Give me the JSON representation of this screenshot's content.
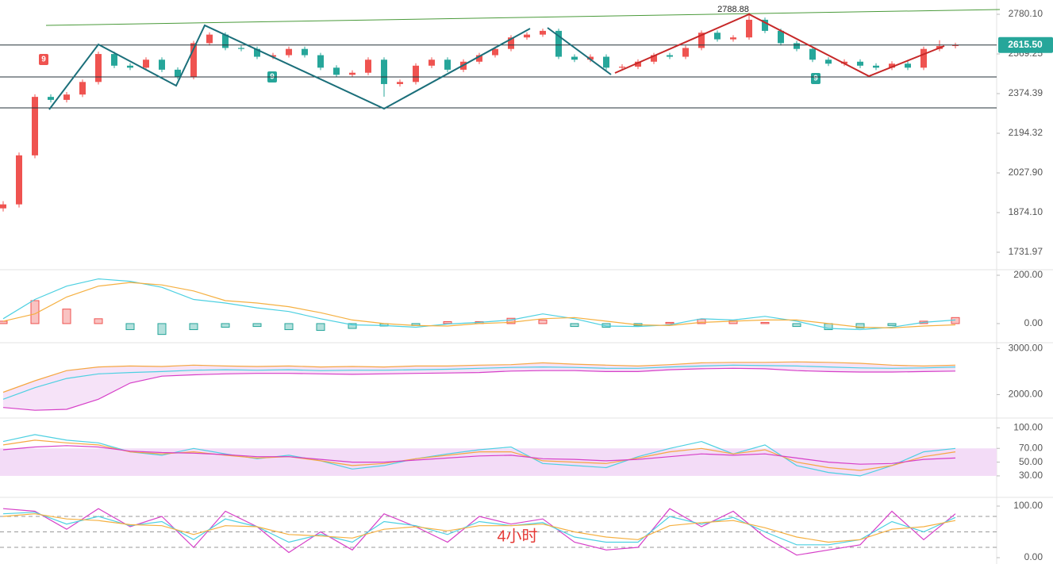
{
  "watermark": "4小时",
  "chart_data": [
    {
      "type": "candlestick",
      "log_scale": true,
      "up_color": "#ef5350",
      "down_color": "#26a69a",
      "ylim": [
        1672.9,
        2860.2
      ],
      "yticks": [
        {
          "value": 2780.1,
          "label": "2780.10"
        },
        2569.25,
        2374.39,
        2194.32,
        {
          "value": 2027.9,
          "label": "2027.90"
        },
        {
          "value": 1874.1,
          "label": "1874.10"
        },
        1731.97
      ],
      "open": [
        1890,
        1905,
        2100,
        2359,
        2345,
        2370,
        2430,
        2569,
        2510,
        2500,
        2540,
        2490,
        2455,
        2625,
        2670,
        2600,
        2595,
        2555,
        2563,
        2595,
        2563,
        2500,
        2465,
        2475,
        2540,
        2420,
        2430,
        2510,
        2540,
        2490,
        2530,
        2563,
        2595,
        2655,
        2670,
        2690,
        2555,
        2540,
        2555,
        2500,
        2505,
        2530,
        2563,
        2555,
        2600,
        2680,
        2645,
        2655,
        2750,
        2690,
        2625,
        2595,
        2540,
        2520,
        2530,
        2510,
        2500,
        2520,
        2500,
        2595,
        2610
      ],
      "high": [
        1917,
        2112,
        2371,
        2371,
        2382,
        2442,
        2581,
        2581,
        2522,
        2552,
        2552,
        2502,
        2637,
        2682,
        2682,
        2612,
        2607,
        2575,
        2607,
        2607,
        2575,
        2512,
        2487,
        2552,
        2552,
        2442,
        2522,
        2552,
        2552,
        2542,
        2575,
        2607,
        2667,
        2682,
        2702,
        2702,
        2567,
        2567,
        2567,
        2517,
        2542,
        2575,
        2575,
        2612,
        2692,
        2692,
        2667,
        2788.88,
        2762,
        2702,
        2637,
        2607,
        2552,
        2542,
        2542,
        2522,
        2532,
        2532,
        2607,
        2640,
        2627
      ],
      "low": [
        1878,
        1893,
        2088,
        2333,
        2333,
        2358,
        2418,
        2498,
        2488,
        2488,
        2478,
        2443,
        2443,
        2613,
        2588,
        2583,
        2543,
        2543,
        2551,
        2551,
        2488,
        2453,
        2453,
        2463,
        2360,
        2408,
        2418,
        2498,
        2478,
        2478,
        2518,
        2551,
        2583,
        2643,
        2658,
        2543,
        2528,
        2528,
        2488,
        2488,
        2493,
        2518,
        2543,
        2543,
        2588,
        2633,
        2633,
        2643,
        2678,
        2613,
        2583,
        2528,
        2508,
        2508,
        2498,
        2488,
        2488,
        2488,
        2488,
        2583,
        2598
      ],
      "close": [
        1905,
        2100,
        2359,
        2345,
        2370,
        2430,
        2569,
        2510,
        2500,
        2540,
        2490,
        2455,
        2625,
        2670,
        2600,
        2595,
        2555,
        2563,
        2595,
        2563,
        2500,
        2465,
        2475,
        2540,
        2420,
        2430,
        2510,
        2540,
        2490,
        2530,
        2563,
        2595,
        2655,
        2670,
        2690,
        2555,
        2540,
        2555,
        2500,
        2505,
        2530,
        2563,
        2555,
        2600,
        2680,
        2645,
        2655,
        2750,
        2690,
        2625,
        2595,
        2540,
        2520,
        2530,
        2510,
        2500,
        2520,
        2500,
        2595,
        2610,
        2615.5
      ],
      "price_tag": {
        "value": 2615.5,
        "label": "2615.50"
      },
      "markers": [
        "9",
        "9",
        "9"
      ]
    },
    {
      "type": "macd",
      "ylim": [
        -79,
        223
      ],
      "yticks": [
        {
          "value": 200,
          "label": "200.00"
        },
        {
          "value": 0,
          "label": "0.00"
        }
      ],
      "up_color": "#ef5350",
      "down_color": "#26a69a",
      "histogram": [
        10,
        95,
        60,
        20,
        -25,
        -45,
        -25,
        -15,
        -12,
        -25,
        -28,
        -20,
        -10,
        -8,
        8,
        8,
        22,
        15,
        -12,
        -15,
        -8,
        5,
        18,
        12,
        5,
        -12,
        -25,
        -18,
        -8,
        10,
        25
      ],
      "series": [
        {
          "color": "#4dd0e1",
          "values": [
            20,
            100,
            155,
            185,
            175,
            150,
            100,
            85,
            65,
            50,
            20,
            -5,
            -8,
            -15,
            -2,
            5,
            15,
            40,
            20,
            -10,
            -12,
            -5,
            20,
            15,
            30,
            10,
            -20,
            -25,
            -15,
            5,
            15
          ]
        },
        {
          "color": "#f5b041",
          "values": [
            10,
            40,
            110,
            155,
            170,
            160,
            135,
            95,
            85,
            70,
            45,
            15,
            0,
            -8,
            -10,
            0,
            5,
            20,
            25,
            10,
            -5,
            -8,
            5,
            10,
            15,
            15,
            0,
            -15,
            -18,
            -10,
            -5
          ]
        }
      ]
    },
    {
      "type": "bands",
      "ylim": [
        1491,
        3127
      ],
      "fill": "#f6e3f8",
      "yticks": [
        {
          "value": 3000,
          "label": "3000.00"
        },
        {
          "value": 2000,
          "label": "2000.00"
        }
      ],
      "series": [
        {
          "color": "#f5a742",
          "values": [
            2050,
            2300,
            2520,
            2600,
            2620,
            2610,
            2640,
            2620,
            2610,
            2620,
            2600,
            2610,
            2600,
            2620,
            2620,
            2640,
            2650,
            2690,
            2660,
            2640,
            2620,
            2650,
            2690,
            2700,
            2700,
            2710,
            2700,
            2680,
            2640,
            2620,
            2640
          ]
        },
        {
          "color": "#4dd0e1",
          "values": [
            1900,
            2150,
            2350,
            2450,
            2480,
            2500,
            2530,
            2540,
            2530,
            2540,
            2520,
            2530,
            2530,
            2540,
            2550,
            2570,
            2590,
            2600,
            2590,
            2570,
            2570,
            2600,
            2620,
            2640,
            2630,
            2620,
            2600,
            2580,
            2570,
            2580,
            2600
          ]
        },
        {
          "color": "#d63fc8",
          "values": [
            1720,
            1660,
            1680,
            1900,
            2250,
            2400,
            2430,
            2450,
            2460,
            2460,
            2450,
            2440,
            2450,
            2460,
            2470,
            2480,
            2510,
            2520,
            2520,
            2500,
            2500,
            2540,
            2560,
            2570,
            2560,
            2520,
            2500,
            2490,
            2490,
            2500,
            2510
          ]
        }
      ]
    },
    {
      "type": "line",
      "ylim": [
        2.2,
        108.4
      ],
      "band": [
        30,
        70
      ],
      "band_color": "#f3dcf7",
      "yticks": [
        {
          "value": 100,
          "label": "100.00"
        },
        {
          "value": 70,
          "label": "70.00"
        },
        {
          "value": 50,
          "label": "50.00"
        },
        {
          "value": 30,
          "label": "30.00"
        }
      ],
      "series": [
        {
          "color": "#4dd0e1",
          "values": [
            80,
            90,
            82,
            78,
            65,
            60,
            70,
            62,
            55,
            60,
            52,
            40,
            45,
            55,
            62,
            68,
            72,
            48,
            45,
            42,
            58,
            70,
            80,
            62,
            75,
            45,
            35,
            30,
            45,
            65,
            70
          ]
        },
        {
          "color": "#f5a742",
          "values": [
            75,
            82,
            78,
            75,
            65,
            62,
            65,
            60,
            56,
            58,
            52,
            45,
            48,
            55,
            60,
            65,
            65,
            52,
            50,
            48,
            56,
            65,
            70,
            62,
            68,
            50,
            42,
            38,
            45,
            58,
            65
          ]
        },
        {
          "color": "#d63fc8",
          "values": [
            68,
            72,
            74,
            72,
            66,
            64,
            63,
            61,
            58,
            58,
            54,
            50,
            50,
            53,
            56,
            59,
            60,
            55,
            54,
            52,
            54,
            58,
            62,
            60,
            62,
            56,
            50,
            47,
            48,
            54,
            56
          ]
        }
      ]
    },
    {
      "type": "line",
      "ylim": [
        -12.3,
        112.3
      ],
      "ref_lines": [
        80,
        50,
        20
      ],
      "yticks": [
        {
          "value": 100,
          "label": "100.00"
        },
        {
          "value": 0,
          "label": "0.00"
        }
      ],
      "series": [
        {
          "color": "#d63fc8",
          "values": [
            95,
            90,
            55,
            95,
            60,
            80,
            20,
            90,
            60,
            10,
            50,
            15,
            85,
            60,
            30,
            80,
            65,
            75,
            30,
            15,
            20,
            95,
            60,
            90,
            40,
            5,
            15,
            25,
            90,
            35,
            85
          ]
        },
        {
          "color": "#4dd0e1",
          "values": [
            85,
            88,
            65,
            80,
            62,
            70,
            35,
            75,
            60,
            30,
            45,
            30,
            70,
            62,
            45,
            70,
            62,
            68,
            40,
            30,
            30,
            80,
            65,
            78,
            50,
            25,
            25,
            35,
            70,
            50,
            78
          ]
        },
        {
          "color": "#f5b041",
          "values": [
            80,
            85,
            75,
            72,
            64,
            62,
            45,
            62,
            60,
            45,
            42,
            38,
            55,
            60,
            52,
            62,
            62,
            65,
            50,
            40,
            35,
            62,
            68,
            72,
            58,
            40,
            30,
            35,
            55,
            60,
            72
          ]
        }
      ]
    }
  ]
}
